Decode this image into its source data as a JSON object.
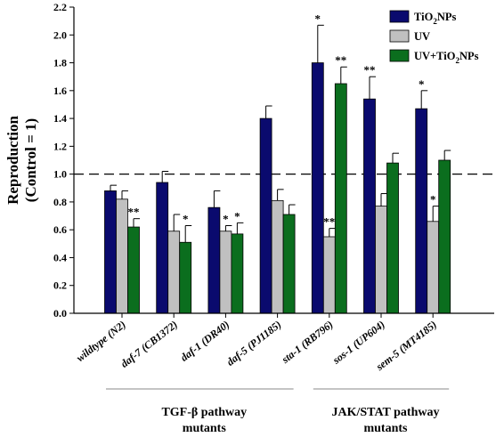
{
  "chart_data": {
    "type": "bar",
    "ylabel_line1": "Reproduction",
    "ylabel_line2": "(Control = 1)",
    "ylim": [
      0,
      2.2
    ],
    "yticks": [
      0.0,
      0.2,
      0.4,
      0.6,
      0.8,
      1.0,
      1.2,
      1.4,
      1.6,
      1.8,
      2.0,
      2.2
    ],
    "reference_line": 1.0,
    "legend_placement": "top-right",
    "categories": [
      {
        "prefix": "",
        "italic": "wildtype",
        "suffix": " (N2)"
      },
      {
        "prefix": "",
        "italic": "daf-7",
        "suffix": " (CB1372)"
      },
      {
        "prefix": "",
        "italic": "daf-1",
        "suffix": " (DR40)"
      },
      {
        "prefix": "",
        "italic": "daf-5",
        "suffix": " (PJ1185)"
      },
      {
        "prefix": "",
        "italic": "sta-1",
        "suffix": " (RB796)"
      },
      {
        "prefix": "",
        "italic": "sos-1",
        "suffix": " (UP604)"
      },
      {
        "prefix": "",
        "italic": "sem-5",
        "suffix": " (MT4185)"
      }
    ],
    "series": [
      {
        "name": "TiO2NPs",
        "legend_main": "TiO",
        "legend_sub": "2",
        "legend_tail": "NPs",
        "color": "#0a0a6e",
        "values": [
          0.88,
          0.94,
          0.76,
          1.4,
          1.8,
          1.54,
          1.47
        ],
        "errors": [
          0.04,
          0.08,
          0.12,
          0.09,
          0.27,
          0.16,
          0.13
        ],
        "marks": [
          "",
          "",
          "",
          "",
          "*",
          "**",
          "*"
        ]
      },
      {
        "name": "UV",
        "legend_main": "UV",
        "legend_sub": "",
        "legend_tail": "",
        "color": "#c0c0c0",
        "values": [
          0.82,
          0.59,
          0.59,
          0.81,
          0.55,
          0.77,
          0.66
        ],
        "errors": [
          0.06,
          0.12,
          0.04,
          0.08,
          0.06,
          0.09,
          0.11
        ],
        "marks": [
          "",
          "",
          "*",
          "",
          "**",
          "",
          "*"
        ]
      },
      {
        "name": "UV+TiO2NPs",
        "legend_main": "UV+TiO",
        "legend_sub": "2",
        "legend_tail": "NPs",
        "color": "#0b6e1e",
        "values": [
          0.62,
          0.51,
          0.57,
          0.71,
          1.65,
          1.08,
          1.1
        ],
        "errors": [
          0.06,
          0.12,
          0.08,
          0.07,
          0.12,
          0.07,
          0.07
        ],
        "marks": [
          "**",
          "*",
          "*",
          "",
          "**",
          "",
          ""
        ]
      }
    ],
    "groups": [
      {
        "line1": "TGF-β pathway",
        "line2": "mutants",
        "from_index": 0,
        "to_index": 3
      },
      {
        "line1": "JAK/STAT pathway",
        "line2": "mutants",
        "from_index": 4,
        "to_index": 6
      }
    ]
  }
}
